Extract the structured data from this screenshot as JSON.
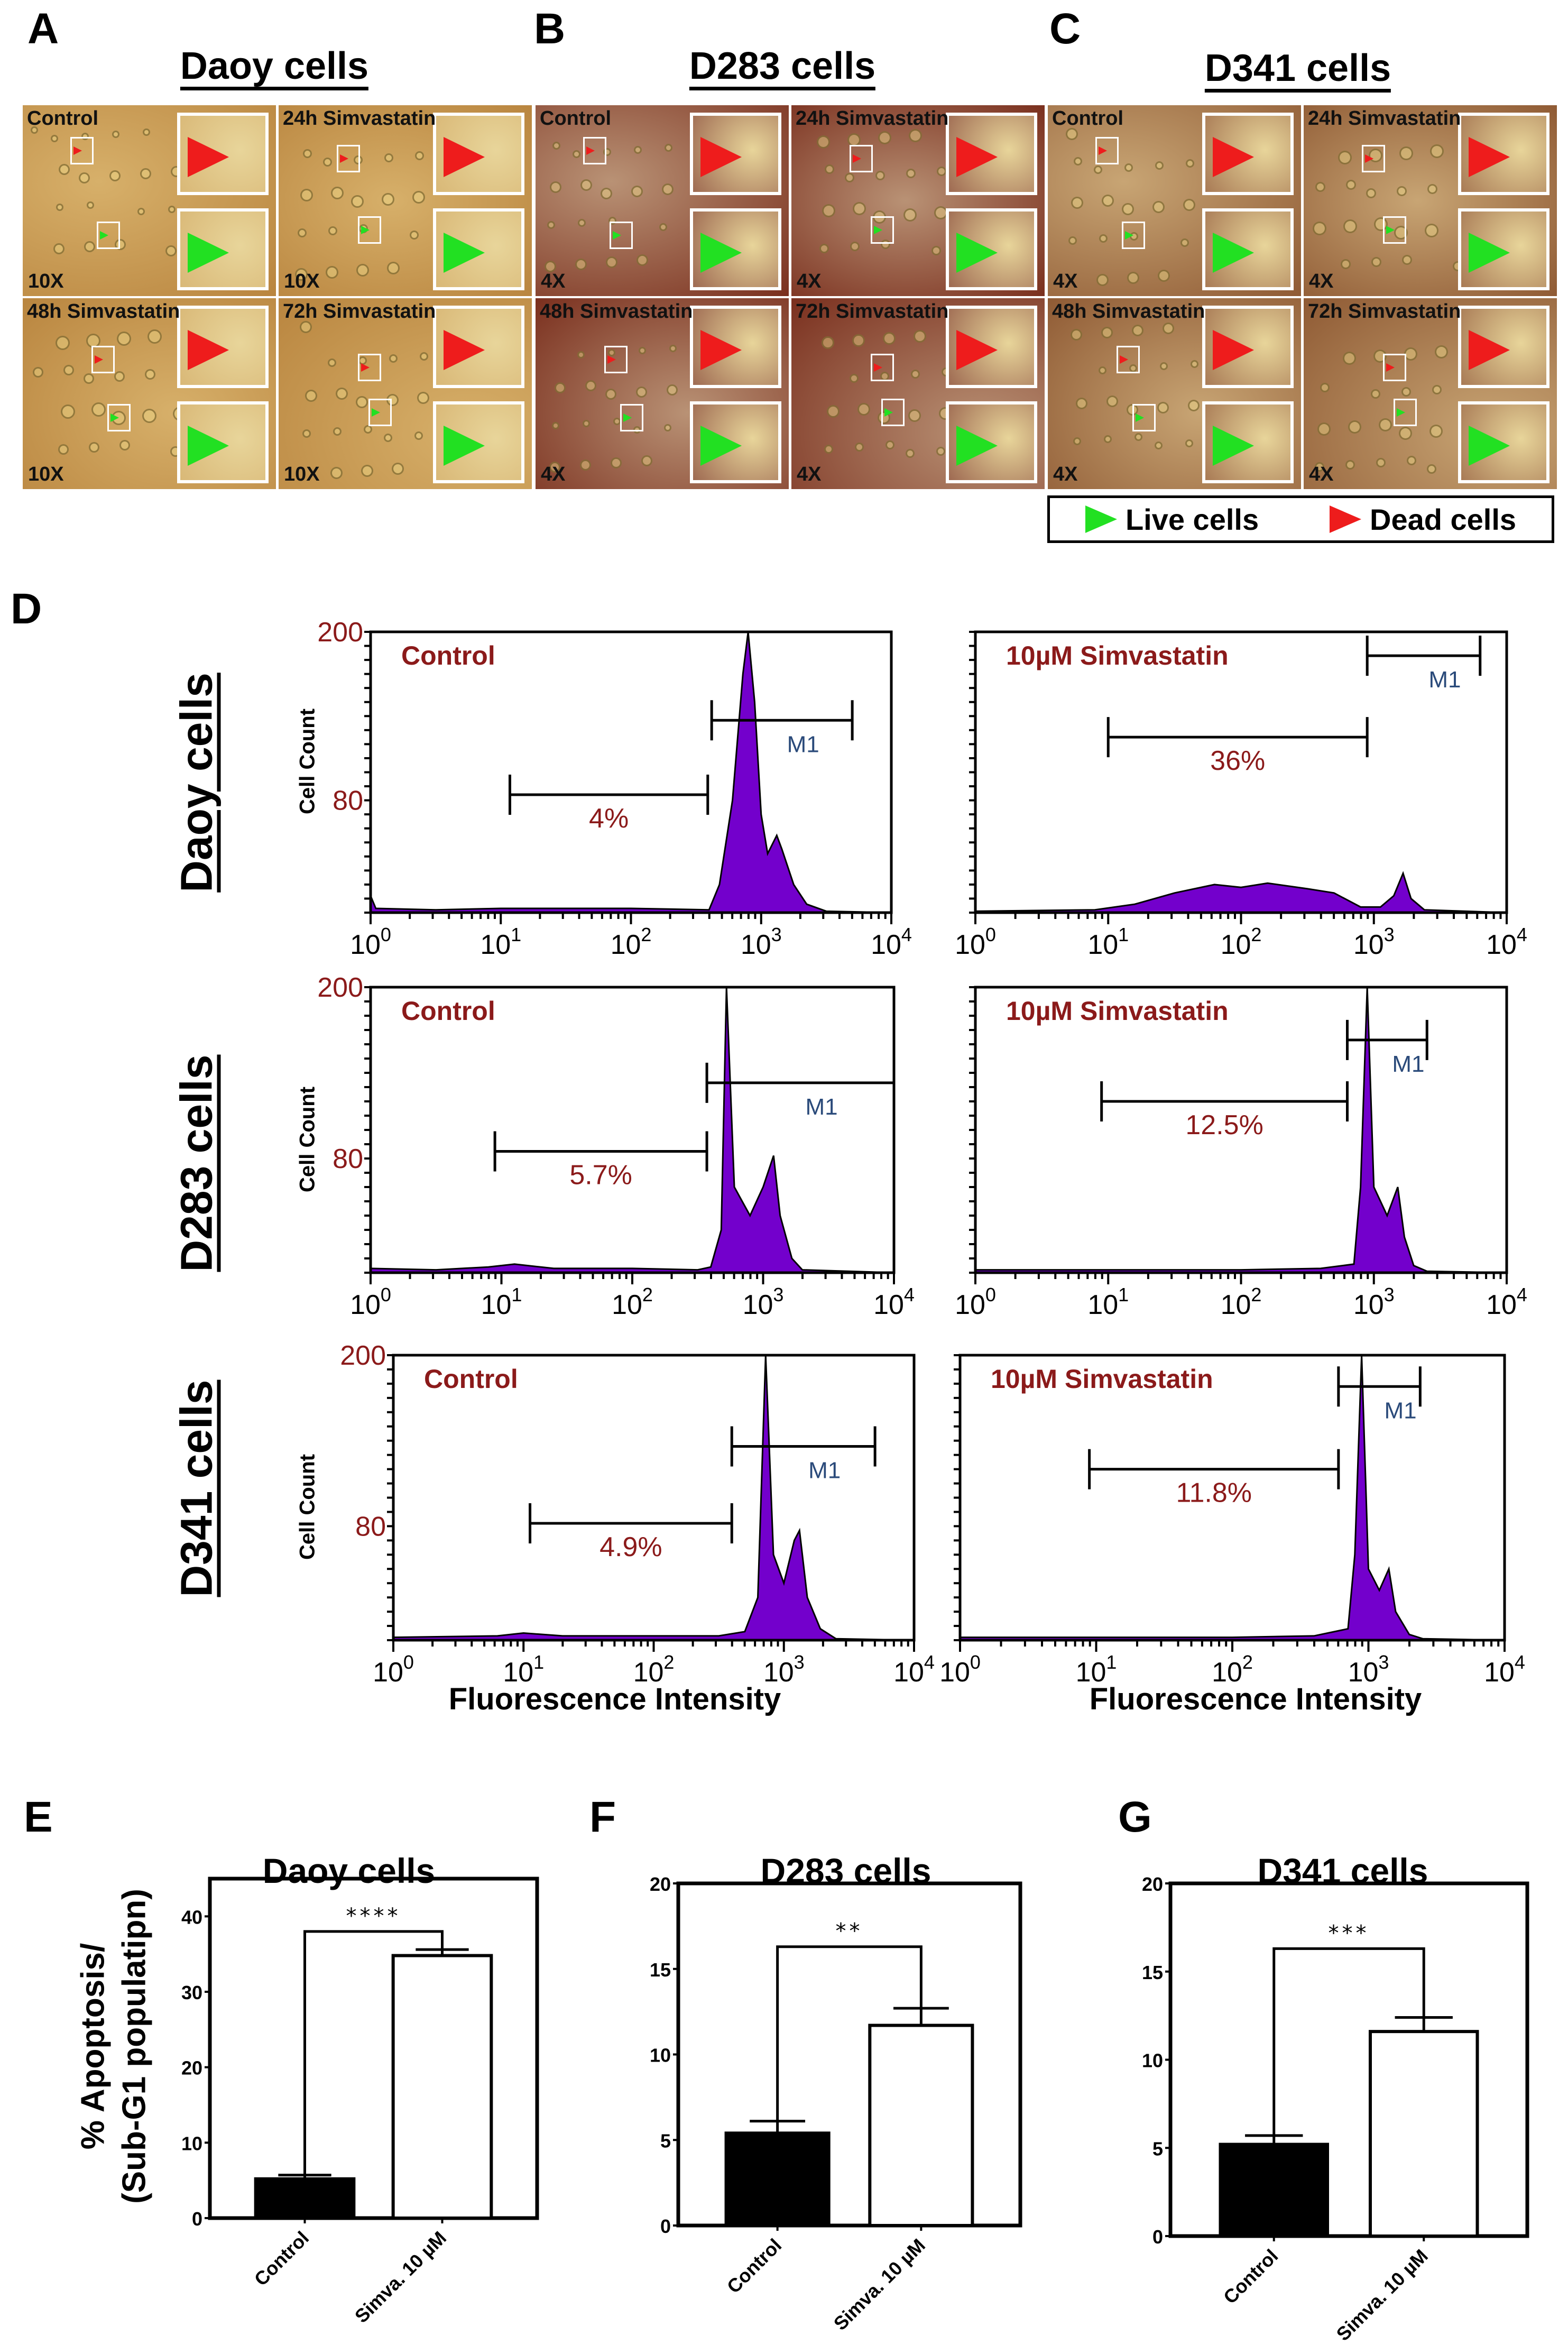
{
  "panel_letters": {
    "a": "A",
    "b": "B",
    "c": "C",
    "d": "D",
    "e": "E",
    "f": "F",
    "g": "G"
  },
  "microscopy": [
    {
      "title": "Daoy cells",
      "magnification": "10X",
      "tone": [
        "#d7b06a",
        "#b9853f"
      ],
      "inset_tone": "#d9b877",
      "images": [
        "Control",
        "24h Simvastatin",
        "48h Simvastatin",
        "72h Simvastatin"
      ]
    },
    {
      "title": "D283 cells",
      "magnification": "4X",
      "tone": [
        "#b99275",
        "#7a2f1e"
      ],
      "inset_tone": "#9e6a52",
      "images": [
        "Control",
        "24h Simvastatin",
        "48h Simvastatin",
        "72h Simvastatin"
      ]
    },
    {
      "title": "D341 cells",
      "magnification": "4X",
      "tone": [
        "#c8a574",
        "#8f5a34"
      ],
      "inset_tone": "#a87a55",
      "images": [
        "Control",
        "24h Simvastatin",
        "48h Simvastatin",
        "72h Simvastatin"
      ]
    }
  ],
  "legend": {
    "live": "Live cells",
    "dead": "Dead cells",
    "live_color": "#22e022",
    "dead_color": "#ee1c1c"
  },
  "flow": {
    "row_labels": [
      "Daoy cells",
      "D283 cells",
      "D341 cells"
    ],
    "y_axis_label": "Cell Count",
    "x_axis_label": "Fluorescence Intensity",
    "fill_color": "#7300cc",
    "label_color": "#8b1a1a"
  },
  "chart_data": [
    {
      "type": "area",
      "title": "Control",
      "row": "Daoy cells",
      "xscale": "log",
      "xlim": [
        0,
        4
      ],
      "ylim": [
        0,
        200
      ],
      "yticks": [
        "80",
        "200"
      ],
      "ytick_values": [
        80,
        200
      ],
      "xticks": [
        "10^0",
        "10^1",
        "10^2",
        "10^3",
        "10^4"
      ],
      "points": [
        [
          0,
          12
        ],
        [
          0.04,
          3
        ],
        [
          0.5,
          2
        ],
        [
          1,
          3
        ],
        [
          1.5,
          3
        ],
        [
          2,
          3
        ],
        [
          2.6,
          2
        ],
        [
          2.68,
          20
        ],
        [
          2.78,
          80
        ],
        [
          2.86,
          170
        ],
        [
          2.9,
          200
        ],
        [
          2.95,
          150
        ],
        [
          3.0,
          70
        ],
        [
          3.05,
          42
        ],
        [
          3.12,
          55
        ],
        [
          3.16,
          45
        ],
        [
          3.25,
          20
        ],
        [
          3.35,
          6
        ],
        [
          3.5,
          1
        ],
        [
          4,
          0
        ]
      ],
      "markers": [
        {
          "label": "4%",
          "from": 1.07,
          "to": 2.59,
          "y": 84
        },
        {
          "label": "M1",
          "from": 2.62,
          "to": 3.7,
          "y": 137
        }
      ]
    },
    {
      "type": "area",
      "title": "10µM Simvastatin",
      "row": "Daoy cells",
      "xscale": "log",
      "xlim": [
        0,
        4
      ],
      "ylim": [
        0,
        200
      ],
      "xticks": [
        "10^0",
        "10^1",
        "10^2",
        "10^3",
        "10^4"
      ],
      "points": [
        [
          0,
          1
        ],
        [
          0.9,
          2
        ],
        [
          1.2,
          6
        ],
        [
          1.5,
          14
        ],
        [
          1.8,
          20
        ],
        [
          2.0,
          18
        ],
        [
          2.2,
          21
        ],
        [
          2.5,
          17
        ],
        [
          2.7,
          14
        ],
        [
          2.9,
          4
        ],
        [
          3.05,
          4
        ],
        [
          3.15,
          12
        ],
        [
          3.22,
          28
        ],
        [
          3.28,
          10
        ],
        [
          3.38,
          2
        ],
        [
          4,
          0
        ]
      ],
      "markers": [
        {
          "label": "36%",
          "from": 1.0,
          "to": 2.95,
          "y": 125
        },
        {
          "label": "M1",
          "from": 2.95,
          "to": 3.8,
          "y": 183
        }
      ]
    },
    {
      "type": "area",
      "title": "Control",
      "row": "D283 cells",
      "xscale": "log",
      "xlim": [
        0,
        4
      ],
      "ylim": [
        0,
        200
      ],
      "yticks": [
        "80",
        "200"
      ],
      "ytick_values": [
        80,
        200
      ],
      "xticks": [
        "10^0",
        "10^1",
        "10^2",
        "10^3",
        "10^4"
      ],
      "points": [
        [
          0,
          3
        ],
        [
          0.5,
          2
        ],
        [
          0.9,
          4
        ],
        [
          1.1,
          6
        ],
        [
          1.4,
          3
        ],
        [
          2,
          3
        ],
        [
          2.5,
          2
        ],
        [
          2.6,
          4
        ],
        [
          2.68,
          30
        ],
        [
          2.72,
          200
        ],
        [
          2.78,
          60
        ],
        [
          2.9,
          40
        ],
        [
          3.0,
          60
        ],
        [
          3.08,
          82
        ],
        [
          3.13,
          40
        ],
        [
          3.22,
          10
        ],
        [
          3.3,
          2
        ],
        [
          4,
          0
        ]
      ],
      "markers": [
        {
          "label": "5.7%",
          "from": 0.95,
          "to": 2.57,
          "y": 85
        },
        {
          "label": "M1",
          "from": 2.57,
          "to": 4.0,
          "y": 133
        }
      ]
    },
    {
      "type": "area",
      "title": "10µM Simvastatin",
      "row": "D283 cells",
      "xscale": "log",
      "xlim": [
        0,
        4
      ],
      "ylim": [
        0,
        200
      ],
      "xticks": [
        "10^0",
        "10^1",
        "10^2",
        "10^3",
        "10^4"
      ],
      "points": [
        [
          0,
          2
        ],
        [
          1,
          2
        ],
        [
          2,
          2
        ],
        [
          2.6,
          3
        ],
        [
          2.85,
          6
        ],
        [
          2.9,
          60
        ],
        [
          2.95,
          200
        ],
        [
          3.0,
          60
        ],
        [
          3.1,
          40
        ],
        [
          3.18,
          60
        ],
        [
          3.23,
          25
        ],
        [
          3.3,
          5
        ],
        [
          3.4,
          1
        ],
        [
          4,
          0
        ]
      ],
      "markers": [
        {
          "label": "12.5%",
          "from": 0.95,
          "to": 2.8,
          "y": 120
        },
        {
          "label": "M1",
          "from": 2.8,
          "to": 3.4,
          "y": 163
        }
      ]
    },
    {
      "type": "area",
      "title": "Control",
      "row": "D341 cells",
      "xscale": "log",
      "xlim": [
        0,
        4
      ],
      "ylim": [
        0,
        200
      ],
      "yticks": [
        "80",
        "200"
      ],
      "ytick_values": [
        80,
        200
      ],
      "xticks": [
        "10^0",
        "10^1",
        "10^2",
        "10^3",
        "10^4"
      ],
      "points": [
        [
          0,
          2
        ],
        [
          0.8,
          3
        ],
        [
          1.0,
          5
        ],
        [
          1.3,
          3
        ],
        [
          2,
          3
        ],
        [
          2.5,
          3
        ],
        [
          2.7,
          6
        ],
        [
          2.8,
          30
        ],
        [
          2.86,
          200
        ],
        [
          2.92,
          60
        ],
        [
          3.0,
          40
        ],
        [
          3.08,
          70
        ],
        [
          3.12,
          77
        ],
        [
          3.18,
          30
        ],
        [
          3.28,
          8
        ],
        [
          3.4,
          1
        ],
        [
          4,
          0
        ]
      ],
      "markers": [
        {
          "label": "4.9%",
          "from": 1.05,
          "to": 2.6,
          "y": 82
        },
        {
          "label": "M1",
          "from": 2.6,
          "to": 3.7,
          "y": 136
        }
      ]
    },
    {
      "type": "area",
      "title": "10µM Simvastatin",
      "row": "D341 cells",
      "xscale": "log",
      "xlim": [
        0,
        4
      ],
      "ylim": [
        0,
        200
      ],
      "xticks": [
        "10^0",
        "10^1",
        "10^2",
        "10^3",
        "10^4"
      ],
      "points": [
        [
          0,
          2
        ],
        [
          1,
          2
        ],
        [
          2,
          2
        ],
        [
          2.6,
          3
        ],
        [
          2.85,
          8
        ],
        [
          2.9,
          60
        ],
        [
          2.95,
          200
        ],
        [
          3.0,
          50
        ],
        [
          3.08,
          35
        ],
        [
          3.15,
          50
        ],
        [
          3.2,
          20
        ],
        [
          3.3,
          4
        ],
        [
          3.4,
          1
        ],
        [
          4,
          0
        ]
      ],
      "markers": [
        {
          "label": "11.8%",
          "from": 0.95,
          "to": 2.78,
          "y": 120
        },
        {
          "label": "M1",
          "from": 2.78,
          "to": 3.38,
          "y": 178
        }
      ]
    },
    {
      "type": "bar",
      "title": "Daoy cells",
      "ylabel": "% Apoptosis/ (Sub-G1 populatipn)",
      "ylabel_lines": [
        "% Apoptosis/",
        "(Sub-G1 populatipn)"
      ],
      "categories": [
        "Control",
        "Simva. 10 µM"
      ],
      "values": [
        5.2,
        34.8
      ],
      "errors": [
        0.5,
        0.8
      ],
      "ylim": [
        0,
        45
      ],
      "yticks": [
        0,
        10,
        20,
        30,
        40
      ],
      "significance": "****",
      "bracket_y": 38
    },
    {
      "type": "bar",
      "title": "D283 cells",
      "categories": [
        "Control",
        "Simva. 10 µM"
      ],
      "values": [
        5.4,
        11.7
      ],
      "errors": [
        0.7,
        1.0
      ],
      "ylim": [
        0,
        20
      ],
      "yticks": [
        0,
        5,
        10,
        15,
        20
      ],
      "significance": "**",
      "bracket_y": 16.3
    },
    {
      "type": "bar",
      "title": "D341 cells",
      "categories": [
        "Control",
        "Simva. 10 µM"
      ],
      "values": [
        5.2,
        11.6
      ],
      "errors": [
        0.5,
        0.8
      ],
      "ylim": [
        0,
        20
      ],
      "yticks": [
        0,
        5,
        10,
        15,
        20
      ],
      "significance": "***",
      "bracket_y": 16.3
    }
  ]
}
